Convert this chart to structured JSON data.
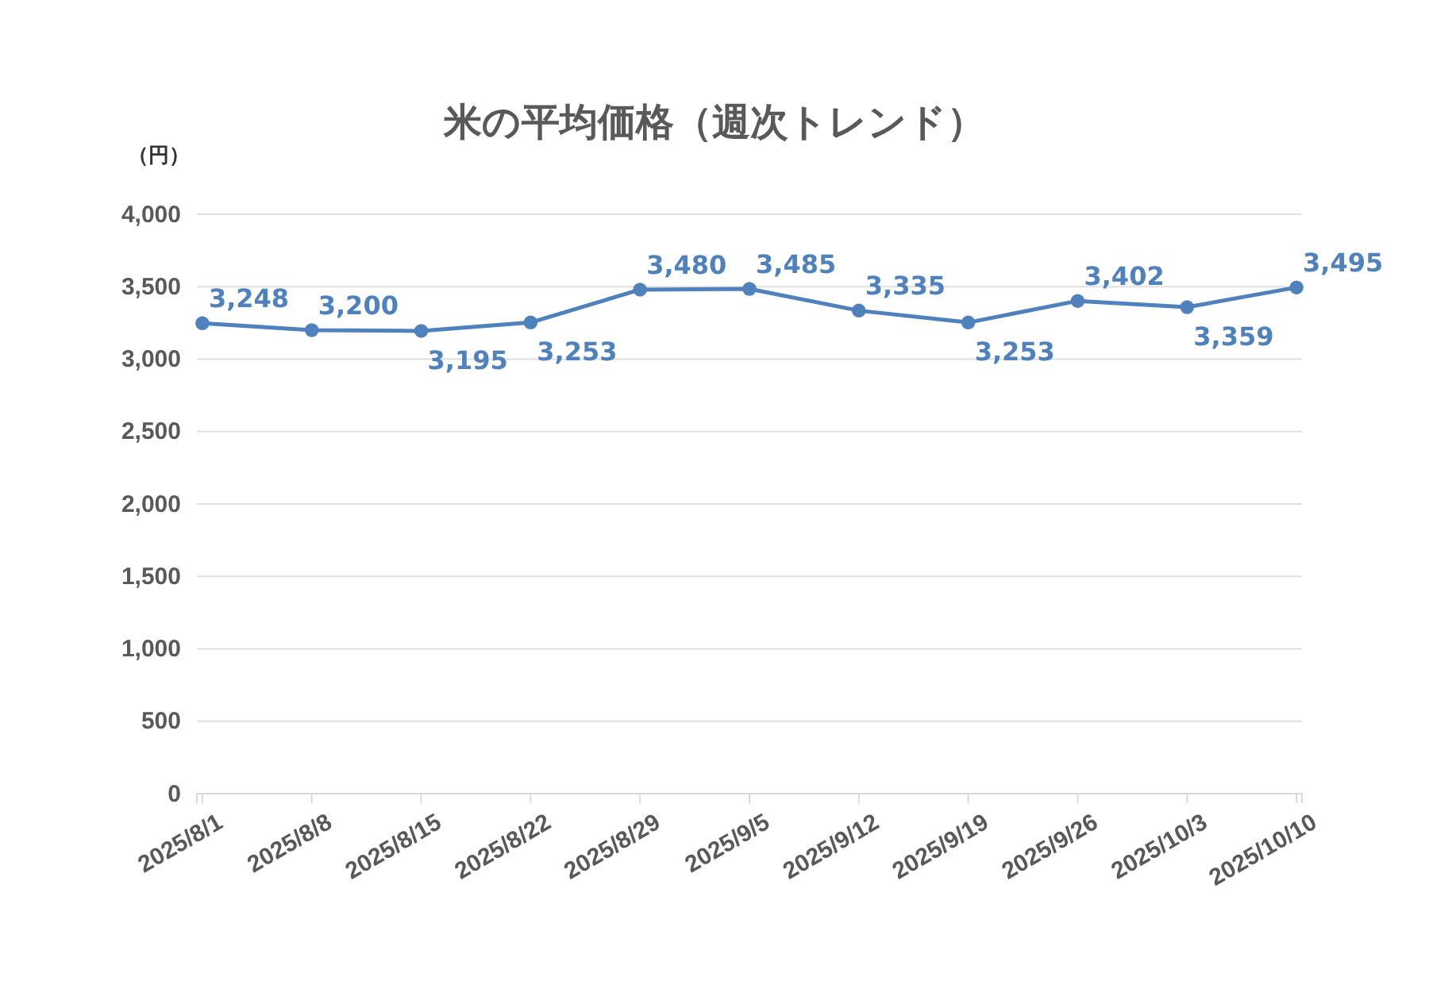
{
  "chart_data": {
    "type": "line",
    "title": "米の平均価格（週次トレンド）",
    "ylabel": "（円）",
    "categories": [
      "2025/8/1",
      "2025/8/8",
      "2025/8/15",
      "2025/8/22",
      "2025/8/29",
      "2025/9/5",
      "2025/9/12",
      "2025/9/19",
      "2025/9/26",
      "2025/10/3",
      "2025/10/10"
    ],
    "series": [
      {
        "color": "#4f81bd",
        "values": [
          3248,
          3200,
          3195,
          3253,
          3480,
          3485,
          3335,
          3253,
          3402,
          3359,
          3495
        ],
        "value_labels": [
          "3,248",
          "3,200",
          "3,195",
          "3,253",
          "3,480",
          "3,485",
          "3,335",
          "3,253",
          "3,402",
          "3,359",
          "3,495"
        ]
      }
    ],
    "ylim": [
      0,
      4000
    ],
    "yticks": [
      {
        "value": 0,
        "label": "0"
      },
      {
        "value": 500,
        "label": "500"
      },
      {
        "value": 1000,
        "label": "1,000"
      },
      {
        "value": 1500,
        "label": "1,500"
      },
      {
        "value": 2000,
        "label": "2,000"
      },
      {
        "value": 2500,
        "label": "2,500"
      },
      {
        "value": 3000,
        "label": "3,000"
      },
      {
        "value": 3500,
        "label": "3,500"
      },
      {
        "value": 4000,
        "label": "4,000"
      }
    ],
    "grid": "y",
    "marker": "circle",
    "line_style": "solid"
  }
}
